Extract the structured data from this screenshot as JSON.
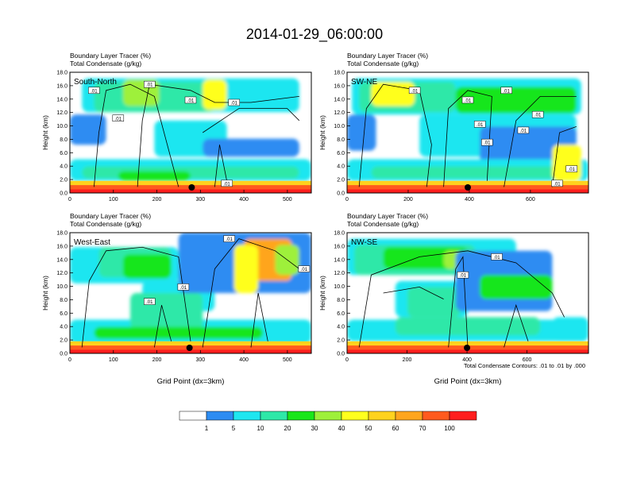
{
  "title": "2014-01-29_06:00:00",
  "footnote": "Total Condensate Contours: .01 to .01 by .000",
  "colors": {
    "levels": [
      "#ffffff",
      "#2d8cf2",
      "#1fe6f0",
      "#2ee8a8",
      "#19e61a",
      "#9ef03a",
      "#ffff1e",
      "#ffd21e",
      "#ffa51e",
      "#ff5a1e",
      "#ff1e1e"
    ],
    "contour": "#000000"
  },
  "legend": {
    "labels": [
      "1",
      "5",
      "10",
      "20",
      "30",
      "40",
      "50",
      "60",
      "70",
      "100"
    ]
  },
  "panels": [
    {
      "id": "south-north",
      "field_title": "Boundary Layer Tracer   (%)",
      "contour_title": "Total Condensate   (g/kg)",
      "section_label": "South-North",
      "ylabel": "Height (km)",
      "xlabel": "",
      "xticks": [
        "0",
        "100",
        "200",
        "300",
        "400",
        "500"
      ],
      "xtick_values": [
        0,
        100,
        200,
        300,
        400,
        500
      ],
      "xlim": [
        0,
        555
      ],
      "yticks": [
        "0.0",
        "2.0",
        "4.0",
        "6.0",
        "8.0",
        "10.0",
        "12.0",
        "14.0",
        "16.0",
        "18.0"
      ],
      "ylim": [
        0,
        18
      ],
      "marker_x": 280,
      "contour_labels": [
        ".01",
        ".01",
        ".01",
        ".01",
        ".01",
        ".01"
      ]
    },
    {
      "id": "sw-ne",
      "field_title": "Boundary Layer Tracer   (%)",
      "contour_title": "Total Condensate   (g/kg)",
      "section_label": "SW-NE",
      "ylabel": "Height (km)",
      "xlabel": "",
      "xticks": [
        "0",
        "200",
        "400",
        "600"
      ],
      "xtick_values": [
        0,
        200,
        400,
        600
      ],
      "xlim": [
        0,
        790
      ],
      "yticks": [
        "0.0",
        "2.0",
        "4.0",
        "6.0",
        "8.0",
        "10.0",
        "12.0",
        "14.0",
        "16.0",
        "18.0"
      ],
      "ylim": [
        0,
        18
      ],
      "marker_x": 395,
      "contour_labels": [
        ".01",
        ".01",
        ".01",
        ".01",
        ".01",
        ".01",
        ".01",
        ".01",
        ".01"
      ]
    },
    {
      "id": "west-east",
      "field_title": "Boundary Layer Tracer   (%)",
      "contour_title": "Total Condensate   (g/kg)",
      "section_label": "West-East",
      "ylabel": "Height (km)",
      "xlabel": "Grid Point (dx=3km)",
      "xticks": [
        "0",
        "100",
        "200",
        "300",
        "400",
        "500"
      ],
      "xtick_values": [
        0,
        100,
        200,
        300,
        400,
        500
      ],
      "xlim": [
        0,
        555
      ],
      "yticks": [
        "0.0",
        "2.0",
        "4.0",
        "6.0",
        "8.0",
        "10.0",
        "12.0",
        "14.0",
        "16.0",
        "18.0"
      ],
      "ylim": [
        0,
        18
      ],
      "marker_x": 275,
      "contour_labels": [
        ".01",
        ".01",
        ".01",
        ".01"
      ]
    },
    {
      "id": "nw-se",
      "field_title": "Boundary Layer Tracer   (%)",
      "contour_title": "Total Condensate   (g/kg)",
      "section_label": "NW-SE",
      "ylabel": "Height (km)",
      "xlabel": "Grid Point (dx=3km)",
      "xticks": [
        "0",
        "200",
        "400",
        "600"
      ],
      "xtick_values": [
        0,
        200,
        400,
        600
      ],
      "xlim": [
        0,
        805
      ],
      "yticks": [
        "0.0",
        "2.0",
        "4.0",
        "6.0",
        "8.0",
        "10.0",
        "12.0",
        "14.0",
        "16.0",
        "18.0"
      ],
      "ylim": [
        0,
        18
      ],
      "marker_x": 400,
      "contour_labels": [
        ".01",
        ".01"
      ]
    }
  ]
}
